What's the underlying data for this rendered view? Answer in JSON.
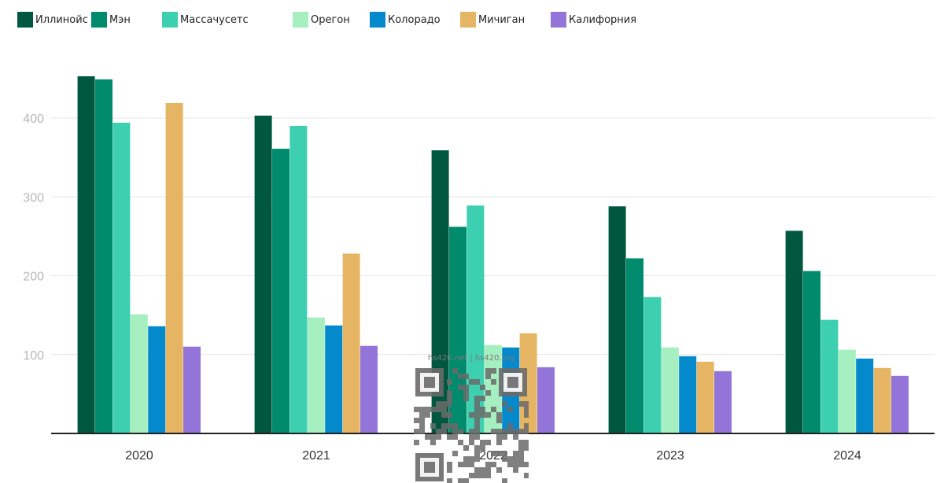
{
  "chart_data": {
    "type": "bar",
    "categories": [
      "2020",
      "2021",
      "2022",
      "2023",
      "2024"
    ],
    "series": [
      {
        "name": "Иллинойс",
        "color": "#00573f",
        "values": [
          453,
          403,
          359,
          288,
          257
        ]
      },
      {
        "name": "Мэн",
        "color": "#008b6d",
        "values": [
          449,
          361,
          262,
          222,
          206
        ]
      },
      {
        "name": "Массачусетс",
        "color": "#3ccfb0",
        "values": [
          394,
          390,
          289,
          173,
          144
        ]
      },
      {
        "name": "Орегон",
        "color": "#a6efc0",
        "values": [
          151,
          147,
          112,
          109,
          106
        ]
      },
      {
        "name": "Колорадо",
        "color": "#0389cc",
        "values": [
          136,
          137,
          109,
          98,
          95
        ]
      },
      {
        "name": "Мичиган",
        "color": "#e6b563",
        "values": [
          419,
          228,
          127,
          91,
          83
        ]
      },
      {
        "name": "Калифорния",
        "color": "#9374d8",
        "values": [
          110,
          111,
          84,
          79,
          73
        ]
      }
    ],
    "y_ticks": [
      100,
      200,
      300,
      400
    ],
    "ylim": [
      0,
      450
    ],
    "grid": true,
    "legend_position": "top-left",
    "xlabel": "",
    "ylabel": ""
  },
  "watermark": {
    "text": "hs420.net | hs420.org",
    "icon": "qr-code-icon"
  }
}
